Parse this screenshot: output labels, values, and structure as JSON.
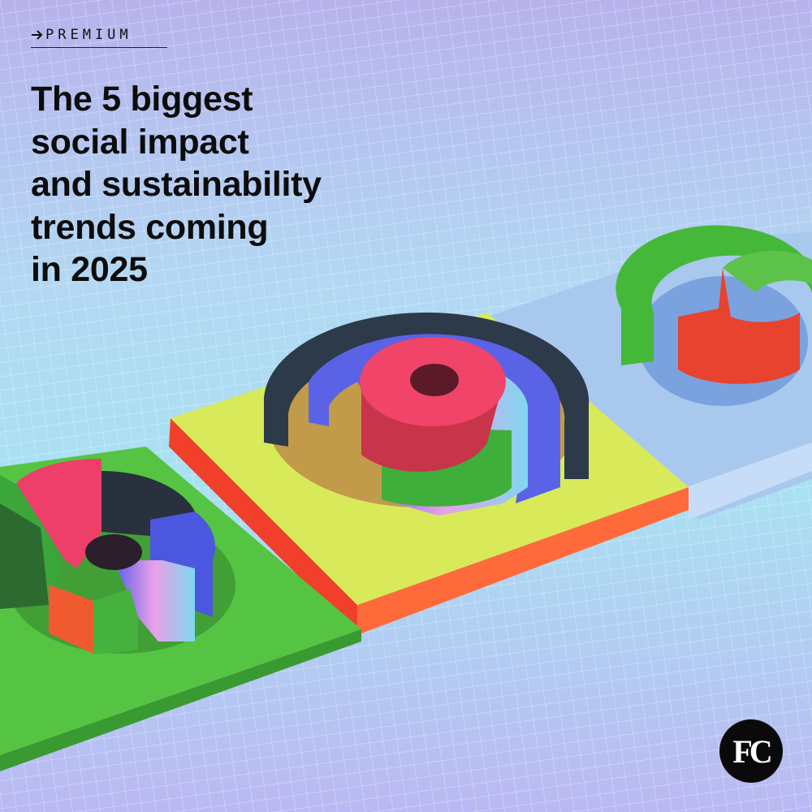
{
  "label": "PREMIUM",
  "headline": [
    "The 5 biggest",
    "social impact",
    "and sustainability",
    "trends coming",
    "in 2025"
  ],
  "logo": "FC"
}
